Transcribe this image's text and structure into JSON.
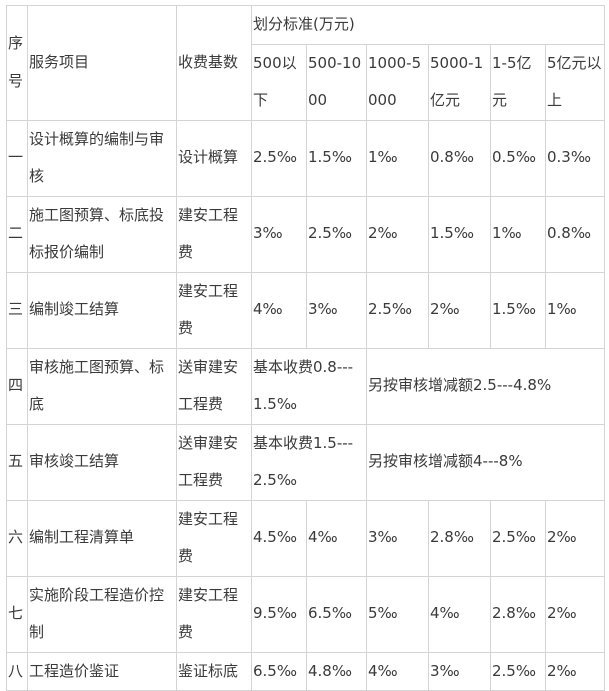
{
  "headers": {
    "index": "序号",
    "service": "服务项目",
    "base": "收费基数",
    "standard": "划分标准(万元)",
    "ranges": [
      "500以下",
      "500-1000",
      "1000-5000",
      "5000-1亿元",
      "1-5亿元",
      "5亿元以上"
    ]
  },
  "rows": [
    {
      "index": "一",
      "service": "设计概算的编制与审核",
      "base": "设计概算",
      "rates": [
        "2.5‰",
        "1.5‰",
        "1‰",
        "0.8‰",
        "0.5‰",
        "0.3‰"
      ]
    },
    {
      "index": "二",
      "service": "施工图预算、标底投标报价编制",
      "base": "建安工程费",
      "rates": [
        "3‰",
        "2.5‰",
        "2‰",
        "1.5‰",
        "1‰",
        "0.8‰"
      ]
    },
    {
      "index": "三",
      "service": "编制竣工结算",
      "base": "建安工程费",
      "rates": [
        "4‰",
        "3‰",
        "2.5‰",
        "2‰",
        "1.5‰",
        "1‰"
      ]
    },
    {
      "index": "四",
      "service": "审核施工图预算、标底",
      "base": "送审建安工程费",
      "basic": "基本收费0.8---1.5‰",
      "extra": "另按审核增减额2.5---4.8%"
    },
    {
      "index": "五",
      "service": "审核竣工结算",
      "base": "送审建安工程费",
      "basic": "基本收费1.5---2.5‰",
      "extra": "另按审核增减额4---8%"
    },
    {
      "index": "六",
      "service": "编制工程清算单",
      "base": "建安工程费",
      "rates": [
        "4.5‰",
        "4‰",
        "3‰",
        "2.8‰",
        "2.5‰",
        "2‰"
      ]
    },
    {
      "index": "七",
      "service": "实施阶段工程造价控制",
      "base": "建安工程费",
      "rates": [
        "9.5‰",
        "6.5‰",
        "5‰",
        "4‰",
        "2.8‰",
        "2‰"
      ]
    },
    {
      "index": "八",
      "service": "工程造价鉴证",
      "base": "鉴证标底",
      "rates": [
        "6.5‰",
        "4.8‰",
        "4‰",
        "3‰",
        "2.5‰",
        "2‰"
      ]
    }
  ]
}
